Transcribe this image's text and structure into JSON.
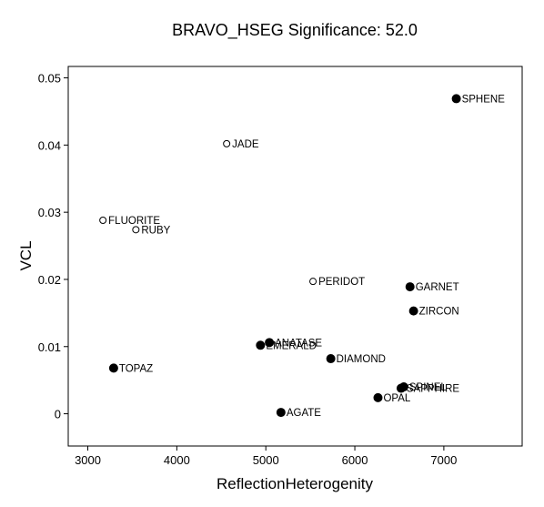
{
  "chart_data": {
    "type": "scatter",
    "title": "BRAVO_HSEG Significance: 52.0",
    "xlabel": "ReflectionHeterogenity",
    "ylabel": "VCL",
    "xlim": [
      2780,
      7880
    ],
    "ylim": [
      -0.0048,
      0.0517
    ],
    "xticks": [
      "3000",
      "4000",
      "5000",
      "6000",
      "7000"
    ],
    "xtick_values": [
      3000,
      4000,
      5000,
      6000,
      7000
    ],
    "yticks": [
      "0",
      "0.01",
      "0.02",
      "0.03",
      "0.04",
      "0.05"
    ],
    "ytick_values": [
      0,
      0.01,
      0.02,
      0.03,
      0.04,
      0.05
    ],
    "grid": false,
    "legend": "none",
    "points": [
      {
        "label": "SPHENE",
        "x": 7140,
        "y": 0.0469,
        "marker": "filled"
      },
      {
        "label": "JADE",
        "x": 4560,
        "y": 0.0402,
        "marker": "open"
      },
      {
        "label": "FLUORITE",
        "x": 3170,
        "y": 0.0288,
        "marker": "open"
      },
      {
        "label": "RUBY",
        "x": 3540,
        "y": 0.0274,
        "marker": "open"
      },
      {
        "label": "PERIDOT",
        "x": 5530,
        "y": 0.0197,
        "marker": "open"
      },
      {
        "label": "GARNET",
        "x": 6620,
        "y": 0.0189,
        "marker": "filled"
      },
      {
        "label": "ZIRCON",
        "x": 6660,
        "y": 0.0153,
        "marker": "filled"
      },
      {
        "label": "ANATASE",
        "x": 5040,
        "y": 0.0106,
        "marker": "filled"
      },
      {
        "label": "EMERALD",
        "x": 4940,
        "y": 0.0102,
        "marker": "filled"
      },
      {
        "label": "DIAMOND",
        "x": 5730,
        "y": 0.0082,
        "marker": "filled"
      },
      {
        "label": "TOPAZ",
        "x": 3290,
        "y": 0.0068,
        "marker": "filled"
      },
      {
        "label": "SPINEL",
        "x": 6550,
        "y": 0.004,
        "marker": "filled"
      },
      {
        "label": "SAPPHIRE",
        "x": 6520,
        "y": 0.0038,
        "marker": "filled"
      },
      {
        "label": "OPAL",
        "x": 6260,
        "y": 0.0024,
        "marker": "filled"
      },
      {
        "label": "AGATE",
        "x": 5170,
        "y": 0.0002,
        "marker": "filled"
      }
    ]
  }
}
